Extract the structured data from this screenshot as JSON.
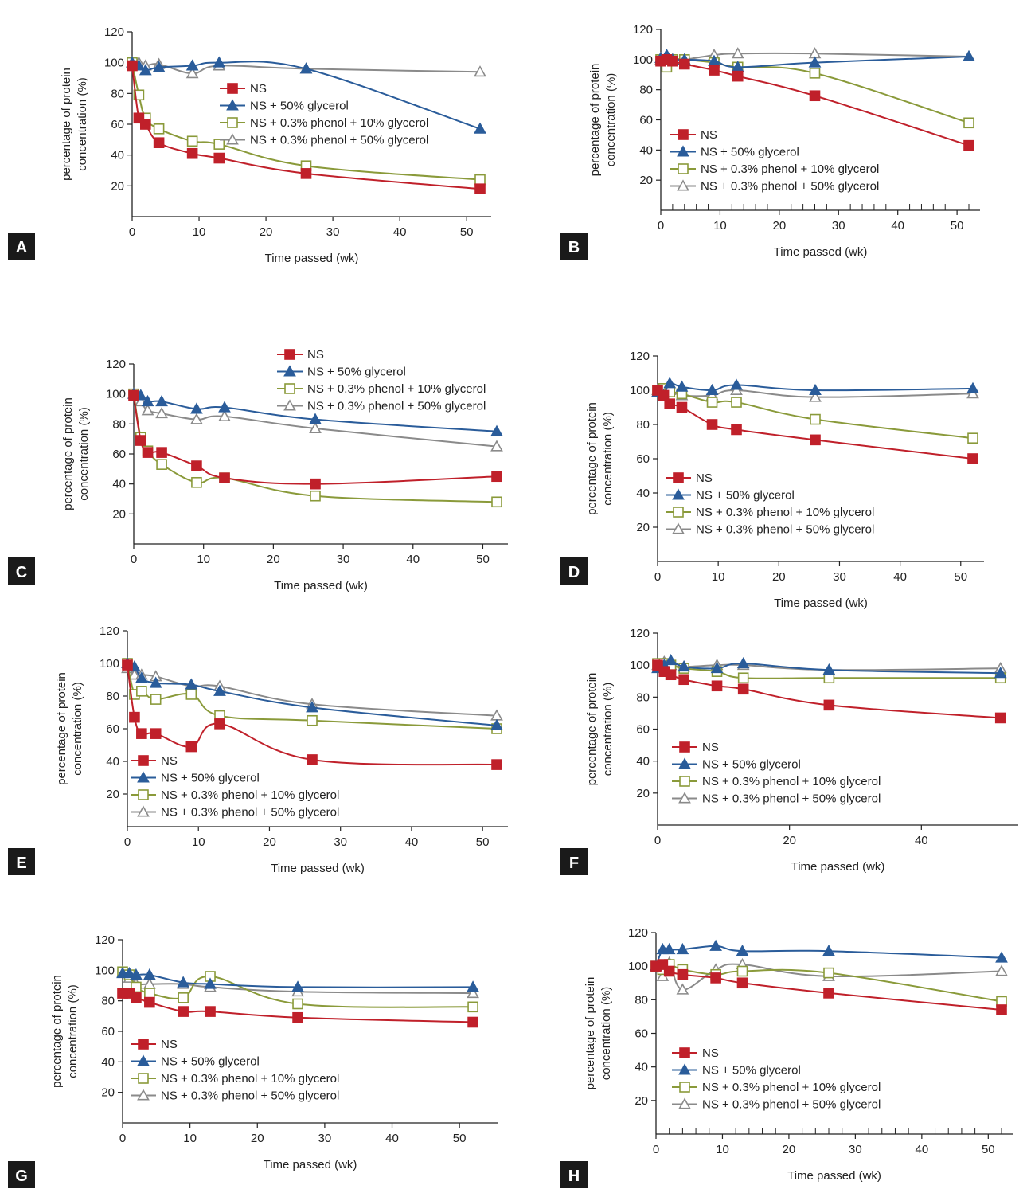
{
  "figure": {
    "panel_labels": [
      "A",
      "B",
      "C",
      "D",
      "E",
      "F",
      "G",
      "H"
    ]
  },
  "colors": {
    "NS": "#c0202a",
    "glycerol50": "#2a5c9a",
    "phenol_glycerol10": "#8a9a3a",
    "phenol_glycerol50": "#8a8a8a",
    "axis": "#222222",
    "label_bg": "#1a1a1a"
  },
  "chart_data": [
    {
      "panel": "A",
      "type": "line",
      "xlabel": "Time passed (wk)",
      "ylabel": "percentage of protein concentration (%)",
      "xlim": [
        0,
        52
      ],
      "ylim": [
        0,
        120
      ],
      "xticks": [
        0,
        10,
        20,
        30,
        40,
        50
      ],
      "yticks": [
        20,
        40,
        60,
        80,
        100,
        120
      ],
      "series": [
        {
          "name": "NS",
          "marker": "filled-square",
          "x": [
            0,
            1,
            2,
            4,
            9,
            13,
            26,
            52
          ],
          "y": [
            98,
            64,
            60,
            48,
            41,
            38,
            28,
            18
          ]
        },
        {
          "name": "NS + 50% glycerol",
          "marker": "filled-triangle",
          "x": [
            0,
            1,
            2,
            4,
            9,
            13,
            26,
            52
          ],
          "y": [
            100,
            98,
            95,
            97,
            98,
            100,
            96,
            57
          ]
        },
        {
          "name": "NS + 0.3% phenol + 10% glycerol",
          "marker": "open-square",
          "x": [
            0,
            1,
            2,
            4,
            9,
            13,
            26,
            52
          ],
          "y": [
            100,
            79,
            64,
            57,
            49,
            47,
            33,
            24
          ]
        },
        {
          "name": "NS + 0.3% phenol + 50% glycerol",
          "marker": "open-triangle",
          "x": [
            0,
            1,
            2,
            4,
            9,
            13,
            26,
            52
          ],
          "y": [
            100,
            100,
            98,
            99,
            93,
            98,
            96,
            94
          ]
        }
      ]
    },
    {
      "panel": "B",
      "type": "line",
      "xlabel": "Time passed (wk)",
      "ylabel": "percentage of protein concentration (%)",
      "xlim": [
        0,
        52
      ],
      "ylim": [
        0,
        120
      ],
      "xticks": [
        0,
        10,
        20,
        30,
        40,
        50
      ],
      "yticks": [
        20,
        40,
        60,
        80,
        100,
        120
      ],
      "series": [
        {
          "name": "NS",
          "marker": "filled-square",
          "x": [
            0,
            1,
            2,
            4,
            9,
            13,
            26,
            52
          ],
          "y": [
            99,
            100,
            99,
            97,
            93,
            89,
            76,
            43
          ]
        },
        {
          "name": "NS + 50% glycerol",
          "marker": "filled-triangle",
          "x": [
            0,
            1,
            2,
            4,
            9,
            13,
            26,
            52
          ],
          "y": [
            101,
            103,
            100,
            100,
            99,
            95,
            98,
            102
          ]
        },
        {
          "name": "NS + 0.3% phenol + 10% glycerol",
          "marker": "open-square",
          "x": [
            0,
            1,
            2,
            4,
            9,
            13,
            26,
            52
          ],
          "y": [
            100,
            95,
            100,
            100,
            98,
            95,
            91,
            58
          ]
        },
        {
          "name": "NS + 0.3% phenol + 50% glycerol",
          "marker": "open-triangle",
          "x": [
            0,
            1,
            2,
            4,
            9,
            13,
            26,
            52
          ],
          "y": [
            100,
            100,
            100,
            100,
            103,
            104,
            104,
            102
          ]
        }
      ]
    },
    {
      "panel": "C",
      "type": "line",
      "xlabel": "Time passed (wk)",
      "ylabel": "percentage of protein concentration (%)",
      "xlim": [
        0,
        52
      ],
      "ylim": [
        0,
        120
      ],
      "xticks": [
        0,
        10,
        20,
        30,
        40,
        50
      ],
      "yticks": [
        20,
        40,
        60,
        80,
        100,
        120
      ],
      "series": [
        {
          "name": "NS",
          "marker": "filled-square",
          "x": [
            0,
            1,
            2,
            4,
            9,
            13,
            26,
            52
          ],
          "y": [
            99,
            69,
            61,
            61,
            52,
            44,
            40,
            45
          ]
        },
        {
          "name": "NS + 50% glycerol",
          "marker": "filled-triangle",
          "x": [
            0,
            1,
            2,
            4,
            9,
            13,
            26,
            52
          ],
          "y": [
            100,
            99,
            95,
            95,
            90,
            91,
            83,
            75
          ]
        },
        {
          "name": "NS + 0.3% phenol + 10% glycerol",
          "marker": "open-square",
          "x": [
            0,
            1,
            2,
            4,
            9,
            13,
            26,
            52
          ],
          "y": [
            100,
            71,
            62,
            53,
            41,
            44,
            32,
            28
          ]
        },
        {
          "name": "NS + 0.3% phenol + 50% glycerol",
          "marker": "open-triangle",
          "x": [
            0,
            1,
            2,
            4,
            9,
            13,
            26,
            52
          ],
          "y": [
            100,
            95,
            89,
            87,
            83,
            85,
            77,
            65
          ]
        }
      ]
    },
    {
      "panel": "D",
      "type": "line",
      "xlabel": "Time passed (wk)",
      "ylabel": "percentage of protein concentration (%)",
      "xlim": [
        0,
        52
      ],
      "ylim": [
        0,
        120
      ],
      "xticks": [
        0,
        10,
        20,
        30,
        40,
        50
      ],
      "yticks": [
        20,
        40,
        60,
        80,
        100,
        120
      ],
      "series": [
        {
          "name": "NS",
          "marker": "filled-square",
          "x": [
            0,
            1,
            2,
            4,
            9,
            13,
            26,
            52
          ],
          "y": [
            100,
            97,
            92,
            90,
            80,
            77,
            71,
            60
          ]
        },
        {
          "name": "NS + 50% glycerol",
          "marker": "filled-triangle",
          "x": [
            0,
            1,
            2,
            4,
            9,
            13,
            26,
            52
          ],
          "y": [
            99,
            97,
            104,
            102,
            100,
            103,
            100,
            101
          ]
        },
        {
          "name": "NS + 0.3% phenol + 10% glycerol",
          "marker": "open-square",
          "x": [
            0,
            1,
            2,
            4,
            9,
            13,
            26,
            52
          ],
          "y": [
            100,
            101,
            99,
            98,
            93,
            93,
            83,
            72
          ]
        },
        {
          "name": "NS + 0.3% phenol + 50% glycerol",
          "marker": "open-triangle",
          "x": [
            0,
            1,
            2,
            4,
            9,
            13,
            26,
            52
          ],
          "y": [
            100,
            100,
            100,
            97,
            97,
            100,
            96,
            98
          ]
        }
      ]
    },
    {
      "panel": "E",
      "type": "line",
      "xlabel": "Time passed (wk)",
      "ylabel": "percentage of protein concentration (%)",
      "xlim": [
        0,
        52
      ],
      "ylim": [
        0,
        120
      ],
      "xticks": [
        0,
        10,
        20,
        30,
        40,
        50
      ],
      "yticks": [
        20,
        40,
        60,
        80,
        100,
        120
      ],
      "series": [
        {
          "name": "NS",
          "marker": "filled-square",
          "x": [
            0,
            1,
            2,
            4,
            9,
            13,
            26,
            52
          ],
          "y": [
            99,
            67,
            57,
            57,
            49,
            63,
            41,
            38
          ]
        },
        {
          "name": "NS + 50% glycerol",
          "marker": "filled-triangle",
          "x": [
            0,
            1,
            2,
            4,
            9,
            13,
            26,
            52
          ],
          "y": [
            100,
            98,
            91,
            88,
            87,
            83,
            73,
            62
          ]
        },
        {
          "name": "NS + 0.3% phenol + 10% glycerol",
          "marker": "open-square",
          "x": [
            0,
            1,
            2,
            4,
            9,
            13,
            26,
            52
          ],
          "y": [
            100,
            81,
            83,
            78,
            81,
            68,
            65,
            60
          ]
        },
        {
          "name": "NS + 0.3% phenol + 50% glycerol",
          "marker": "open-triangle",
          "x": [
            0,
            1,
            2,
            4,
            9,
            13,
            26,
            52
          ],
          "y": [
            97,
            93,
            93,
            92,
            86,
            86,
            75,
            68
          ]
        }
      ]
    },
    {
      "panel": "F",
      "type": "line",
      "xlabel": "Time passed (wk)",
      "ylabel": "percentage of protein concentration (%)",
      "xlim": [
        0,
        53
      ],
      "ylim": [
        0,
        120
      ],
      "xticks": [
        0,
        20,
        40
      ],
      "yticks": [
        20,
        40,
        60,
        80,
        100,
        120
      ],
      "series": [
        {
          "name": "NS",
          "marker": "filled-square",
          "x": [
            0,
            1,
            2,
            4,
            9,
            13,
            26,
            52
          ],
          "y": [
            100,
            96,
            94,
            91,
            87,
            85,
            75,
            67
          ]
        },
        {
          "name": "NS + 50% glycerol",
          "marker": "filled-triangle",
          "x": [
            0,
            1,
            2,
            4,
            9,
            13,
            26,
            52
          ],
          "y": [
            98,
            100,
            103,
            99,
            98,
            101,
            97,
            95
          ]
        },
        {
          "name": "NS + 0.3% phenol + 10% glycerol",
          "marker": "open-square",
          "x": [
            0,
            1,
            2,
            4,
            9,
            13,
            26,
            52
          ],
          "y": [
            101,
            101,
            100,
            98,
            96,
            92,
            92,
            92
          ]
        },
        {
          "name": "NS + 0.3% phenol + 50% glycerol",
          "marker": "open-triangle",
          "x": [
            0,
            1,
            2,
            4,
            9,
            13,
            26,
            52
          ],
          "y": [
            100,
            102,
            100,
            99,
            100,
            100,
            97,
            98
          ]
        }
      ]
    },
    {
      "panel": "G",
      "type": "line",
      "xlabel": "Time passed (wk)",
      "ylabel": "percentage of protein concentration (%)",
      "xlim": [
        0,
        54
      ],
      "ylim": [
        0,
        120
      ],
      "xticks": [
        0,
        10,
        20,
        30,
        40,
        50
      ],
      "yticks": [
        20,
        40,
        60,
        80,
        100,
        120
      ],
      "series": [
        {
          "name": "NS",
          "marker": "filled-square",
          "x": [
            0,
            1,
            2,
            4,
            9,
            13,
            26,
            52
          ],
          "y": [
            85,
            85,
            82,
            79,
            73,
            73,
            69,
            66
          ]
        },
        {
          "name": "NS + 50% glycerol",
          "marker": "filled-triangle",
          "x": [
            0,
            1,
            2,
            4,
            9,
            13,
            26,
            52
          ],
          "y": [
            98,
            98,
            97,
            97,
            92,
            91,
            89,
            89
          ]
        },
        {
          "name": "NS + 0.3% phenol + 10% glycerol",
          "marker": "open-square",
          "x": [
            0,
            1,
            2,
            4,
            9,
            13,
            26,
            52
          ],
          "y": [
            99,
            97,
            89,
            85,
            82,
            96,
            78,
            76
          ]
        },
        {
          "name": "NS + 0.3% phenol + 50% glycerol",
          "marker": "open-triangle",
          "x": [
            0,
            1,
            2,
            4,
            9,
            13,
            26,
            52
          ],
          "y": [
            99,
            95,
            91,
            91,
            91,
            89,
            86,
            85
          ]
        }
      ]
    },
    {
      "panel": "H",
      "type": "line",
      "xlabel": "Time passed (wk)",
      "ylabel": "percentage of protein concentration (%)",
      "xlim": [
        0,
        52
      ],
      "ylim": [
        0,
        120
      ],
      "xticks": [
        0,
        10,
        20,
        30,
        40,
        50
      ],
      "yticks": [
        20,
        40,
        60,
        80,
        100,
        120
      ],
      "series": [
        {
          "name": "NS",
          "marker": "filled-square",
          "x": [
            0,
            1,
            2,
            4,
            9,
            13,
            26,
            52
          ],
          "y": [
            100,
            101,
            97,
            95,
            93,
            90,
            84,
            74
          ]
        },
        {
          "name": "NS + 50% glycerol",
          "marker": "filled-triangle",
          "x": [
            0,
            1,
            2,
            4,
            9,
            13,
            26,
            52
          ],
          "y": [
            100,
            110,
            110,
            110,
            112,
            109,
            109,
            105
          ]
        },
        {
          "name": "NS + 0.3% phenol + 10% glycerol",
          "marker": "open-square",
          "x": [
            0,
            1,
            2,
            4,
            9,
            13,
            26,
            52
          ],
          "y": [
            100,
            98,
            101,
            98,
            95,
            97,
            96,
            79
          ]
        },
        {
          "name": "NS + 0.3% phenol + 50% glycerol",
          "marker": "open-triangle",
          "x": [
            0,
            1,
            2,
            4,
            9,
            13,
            26,
            52
          ],
          "y": [
            100,
            94,
            102,
            86,
            98,
            101,
            94,
            97
          ]
        }
      ]
    }
  ]
}
